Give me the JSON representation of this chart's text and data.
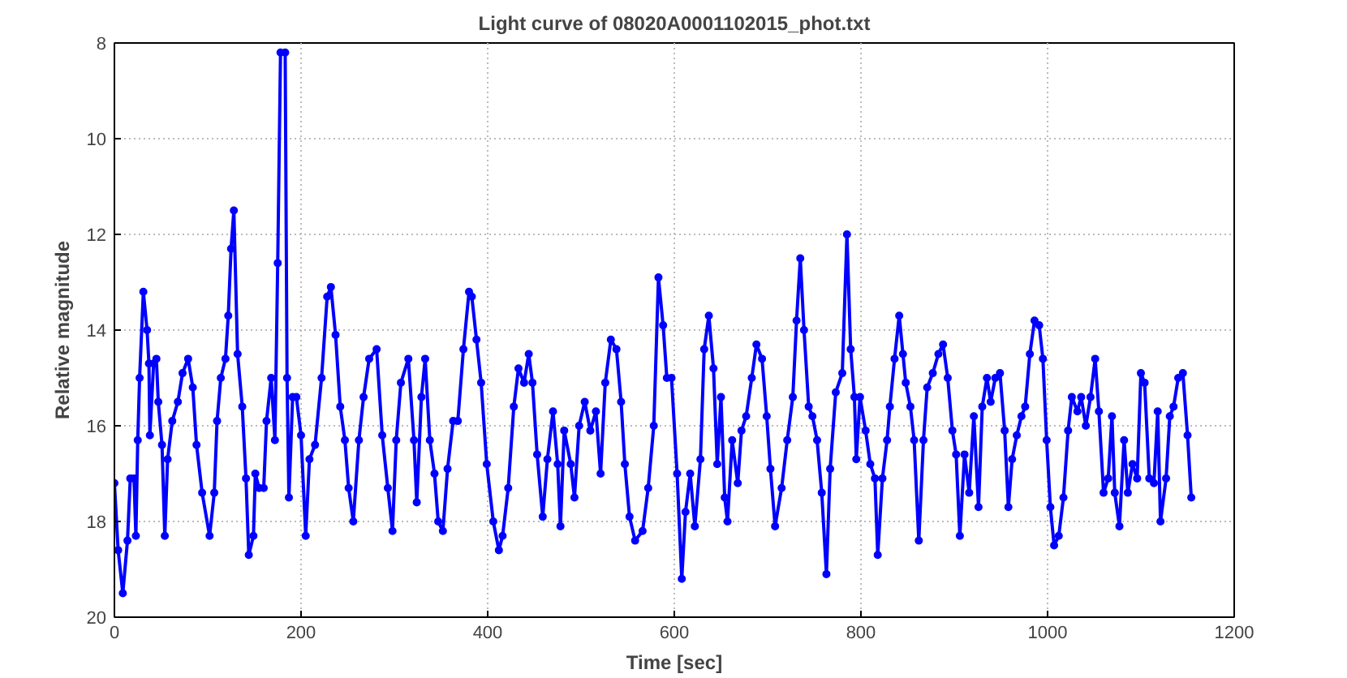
{
  "chart_data": {
    "type": "line",
    "title": "Light curve of 08020A0001102015_phot.txt",
    "xlabel": "Time [sec]",
    "ylabel": "Relative magnitude",
    "xlim": [
      0,
      1200
    ],
    "xticks": [
      0,
      200,
      400,
      600,
      800,
      1000,
      1200
    ],
    "ylim": [
      20,
      8
    ],
    "yticks": [
      8,
      10,
      12,
      14,
      16,
      18,
      20
    ],
    "grid": true,
    "marker": "circle",
    "line_style": "solid",
    "series": [
      {
        "color": "#0000ff",
        "x": [
          0,
          4,
          9,
          14,
          17,
          21,
          23,
          25,
          27,
          31,
          35,
          37,
          38,
          42,
          45,
          47,
          51,
          54,
          57,
          62,
          68,
          73,
          79,
          84,
          88,
          94,
          102,
          107,
          110,
          114,
          119,
          122,
          125,
          128,
          132,
          137,
          141,
          144,
          149,
          151,
          155,
          160,
          163,
          168,
          172,
          175,
          178,
          183,
          185,
          187,
          191,
          195,
          200,
          205,
          209,
          215,
          222,
          228,
          232,
          237,
          242,
          247,
          251,
          256,
          262,
          267,
          273,
          281,
          287,
          293,
          298,
          302,
          307,
          315,
          321,
          324,
          329,
          333,
          338,
          343,
          347,
          352,
          357,
          363,
          368,
          374,
          380,
          383,
          388,
          393,
          399,
          406,
          412,
          416,
          422,
          428,
          433,
          439,
          444,
          448,
          453,
          459,
          464,
          470,
          475,
          478,
          482,
          489,
          493,
          498,
          504,
          510,
          516,
          521,
          526,
          532,
          538,
          543,
          547,
          552,
          558,
          566,
          572,
          578,
          583,
          588,
          592,
          597,
          603,
          608,
          612,
          617,
          622,
          628,
          632,
          637,
          642,
          646,
          650,
          654,
          657,
          662,
          668,
          672,
          677,
          683,
          688,
          694,
          699,
          703,
          708,
          715,
          721,
          727,
          731,
          735,
          739,
          744,
          748,
          753,
          758,
          763,
          767,
          773,
          780,
          785,
          789,
          793,
          795,
          799,
          805,
          810,
          815,
          818,
          823,
          828,
          831,
          836,
          841,
          845,
          848,
          853,
          857,
          862,
          867,
          871,
          877,
          883,
          888,
          893,
          898,
          902,
          906,
          911,
          916,
          921,
          926,
          930,
          935,
          939,
          944,
          949,
          954,
          958,
          962,
          967,
          972,
          976,
          981,
          986,
          991,
          995,
          999,
          1003,
          1007,
          1012,
          1017,
          1022,
          1026,
          1032,
          1036,
          1041,
          1046,
          1051,
          1055,
          1060,
          1065,
          1069,
          1072,
          1077,
          1082,
          1086,
          1091,
          1096,
          1100,
          1104,
          1109,
          1114,
          1118,
          1121,
          1127,
          1131,
          1135,
          1140,
          1145,
          1150,
          1154
        ],
        "values": [
          17.2,
          18.6,
          19.5,
          18.4,
          17.1,
          17.1,
          18.3,
          16.3,
          15,
          13.2,
          14,
          14.7,
          16.2,
          14.7,
          14.6,
          15.5,
          16.4,
          18.3,
          16.7,
          15.9,
          15.5,
          14.9,
          14.6,
          15.2,
          16.4,
          17.4,
          18.3,
          17.4,
          15.9,
          15,
          14.6,
          13.7,
          12.3,
          11.5,
          14.5,
          15.6,
          17.1,
          18.7,
          18.3,
          17,
          17.3,
          17.3,
          15.9,
          15,
          16.3,
          12.6,
          8.2,
          8.2,
          15,
          17.5,
          15.4,
          15.4,
          16.2,
          18.3,
          16.7,
          16.4,
          15,
          13.3,
          13.1,
          14.1,
          15.6,
          16.3,
          17.3,
          18,
          16.3,
          15.4,
          14.6,
          14.4,
          16.2,
          17.3,
          18.2,
          16.3,
          15.1,
          14.6,
          16.3,
          17.6,
          15.4,
          14.6,
          16.3,
          17,
          18,
          18.2,
          16.9,
          15.9,
          15.9,
          14.4,
          13.2,
          13.3,
          14.2,
          15.1,
          16.8,
          18,
          18.6,
          18.3,
          17.3,
          15.6,
          14.8,
          15.1,
          14.5,
          15.1,
          16.6,
          17.9,
          16.7,
          15.7,
          16.8,
          18.1,
          16.1,
          16.8,
          17.5,
          16,
          15.5,
          16.1,
          15.7,
          17,
          15.1,
          14.2,
          14.4,
          15.5,
          16.8,
          17.9,
          18.4,
          18.2,
          17.3,
          16,
          12.9,
          13.9,
          15,
          15,
          17,
          19.2,
          17.8,
          17,
          18.1,
          16.7,
          14.4,
          13.7,
          14.8,
          16.8,
          15.4,
          17.5,
          18,
          16.3,
          17.2,
          16.1,
          15.8,
          15,
          14.3,
          14.6,
          15.8,
          16.9,
          18.1,
          17.3,
          16.3,
          15.4,
          13.8,
          12.5,
          14,
          15.6,
          15.8,
          16.3,
          17.4,
          19.1,
          16.9,
          15.3,
          14.9,
          12,
          14.4,
          15.4,
          16.7,
          15.4,
          16.1,
          16.8,
          17.1,
          18.7,
          17.1,
          16.3,
          15.6,
          14.6,
          13.7,
          14.5,
          15.1,
          15.6,
          16.3,
          18.4,
          16.3,
          15.2,
          14.9,
          14.5,
          14.3,
          15,
          16.1,
          16.6,
          18.3,
          16.6,
          17.4,
          15.8,
          17.7,
          15.6,
          15,
          15.5,
          15,
          14.9,
          16.1,
          17.7,
          16.7,
          16.2,
          15.8,
          15.6,
          14.5,
          13.8,
          13.9,
          14.6,
          16.3,
          17.7,
          18.5,
          18.3,
          17.5,
          16.1,
          15.4,
          15.7,
          15.4,
          16,
          15.4,
          14.6,
          15.7,
          17.4,
          17.1,
          15.8,
          17.4,
          18.1,
          16.3,
          17.4,
          16.8,
          17.1,
          14.9,
          15.1,
          17.1,
          17.2,
          15.7,
          18,
          17.1,
          15.8,
          15.6,
          15,
          14.9,
          16.2,
          17.5
        ]
      }
    ]
  }
}
